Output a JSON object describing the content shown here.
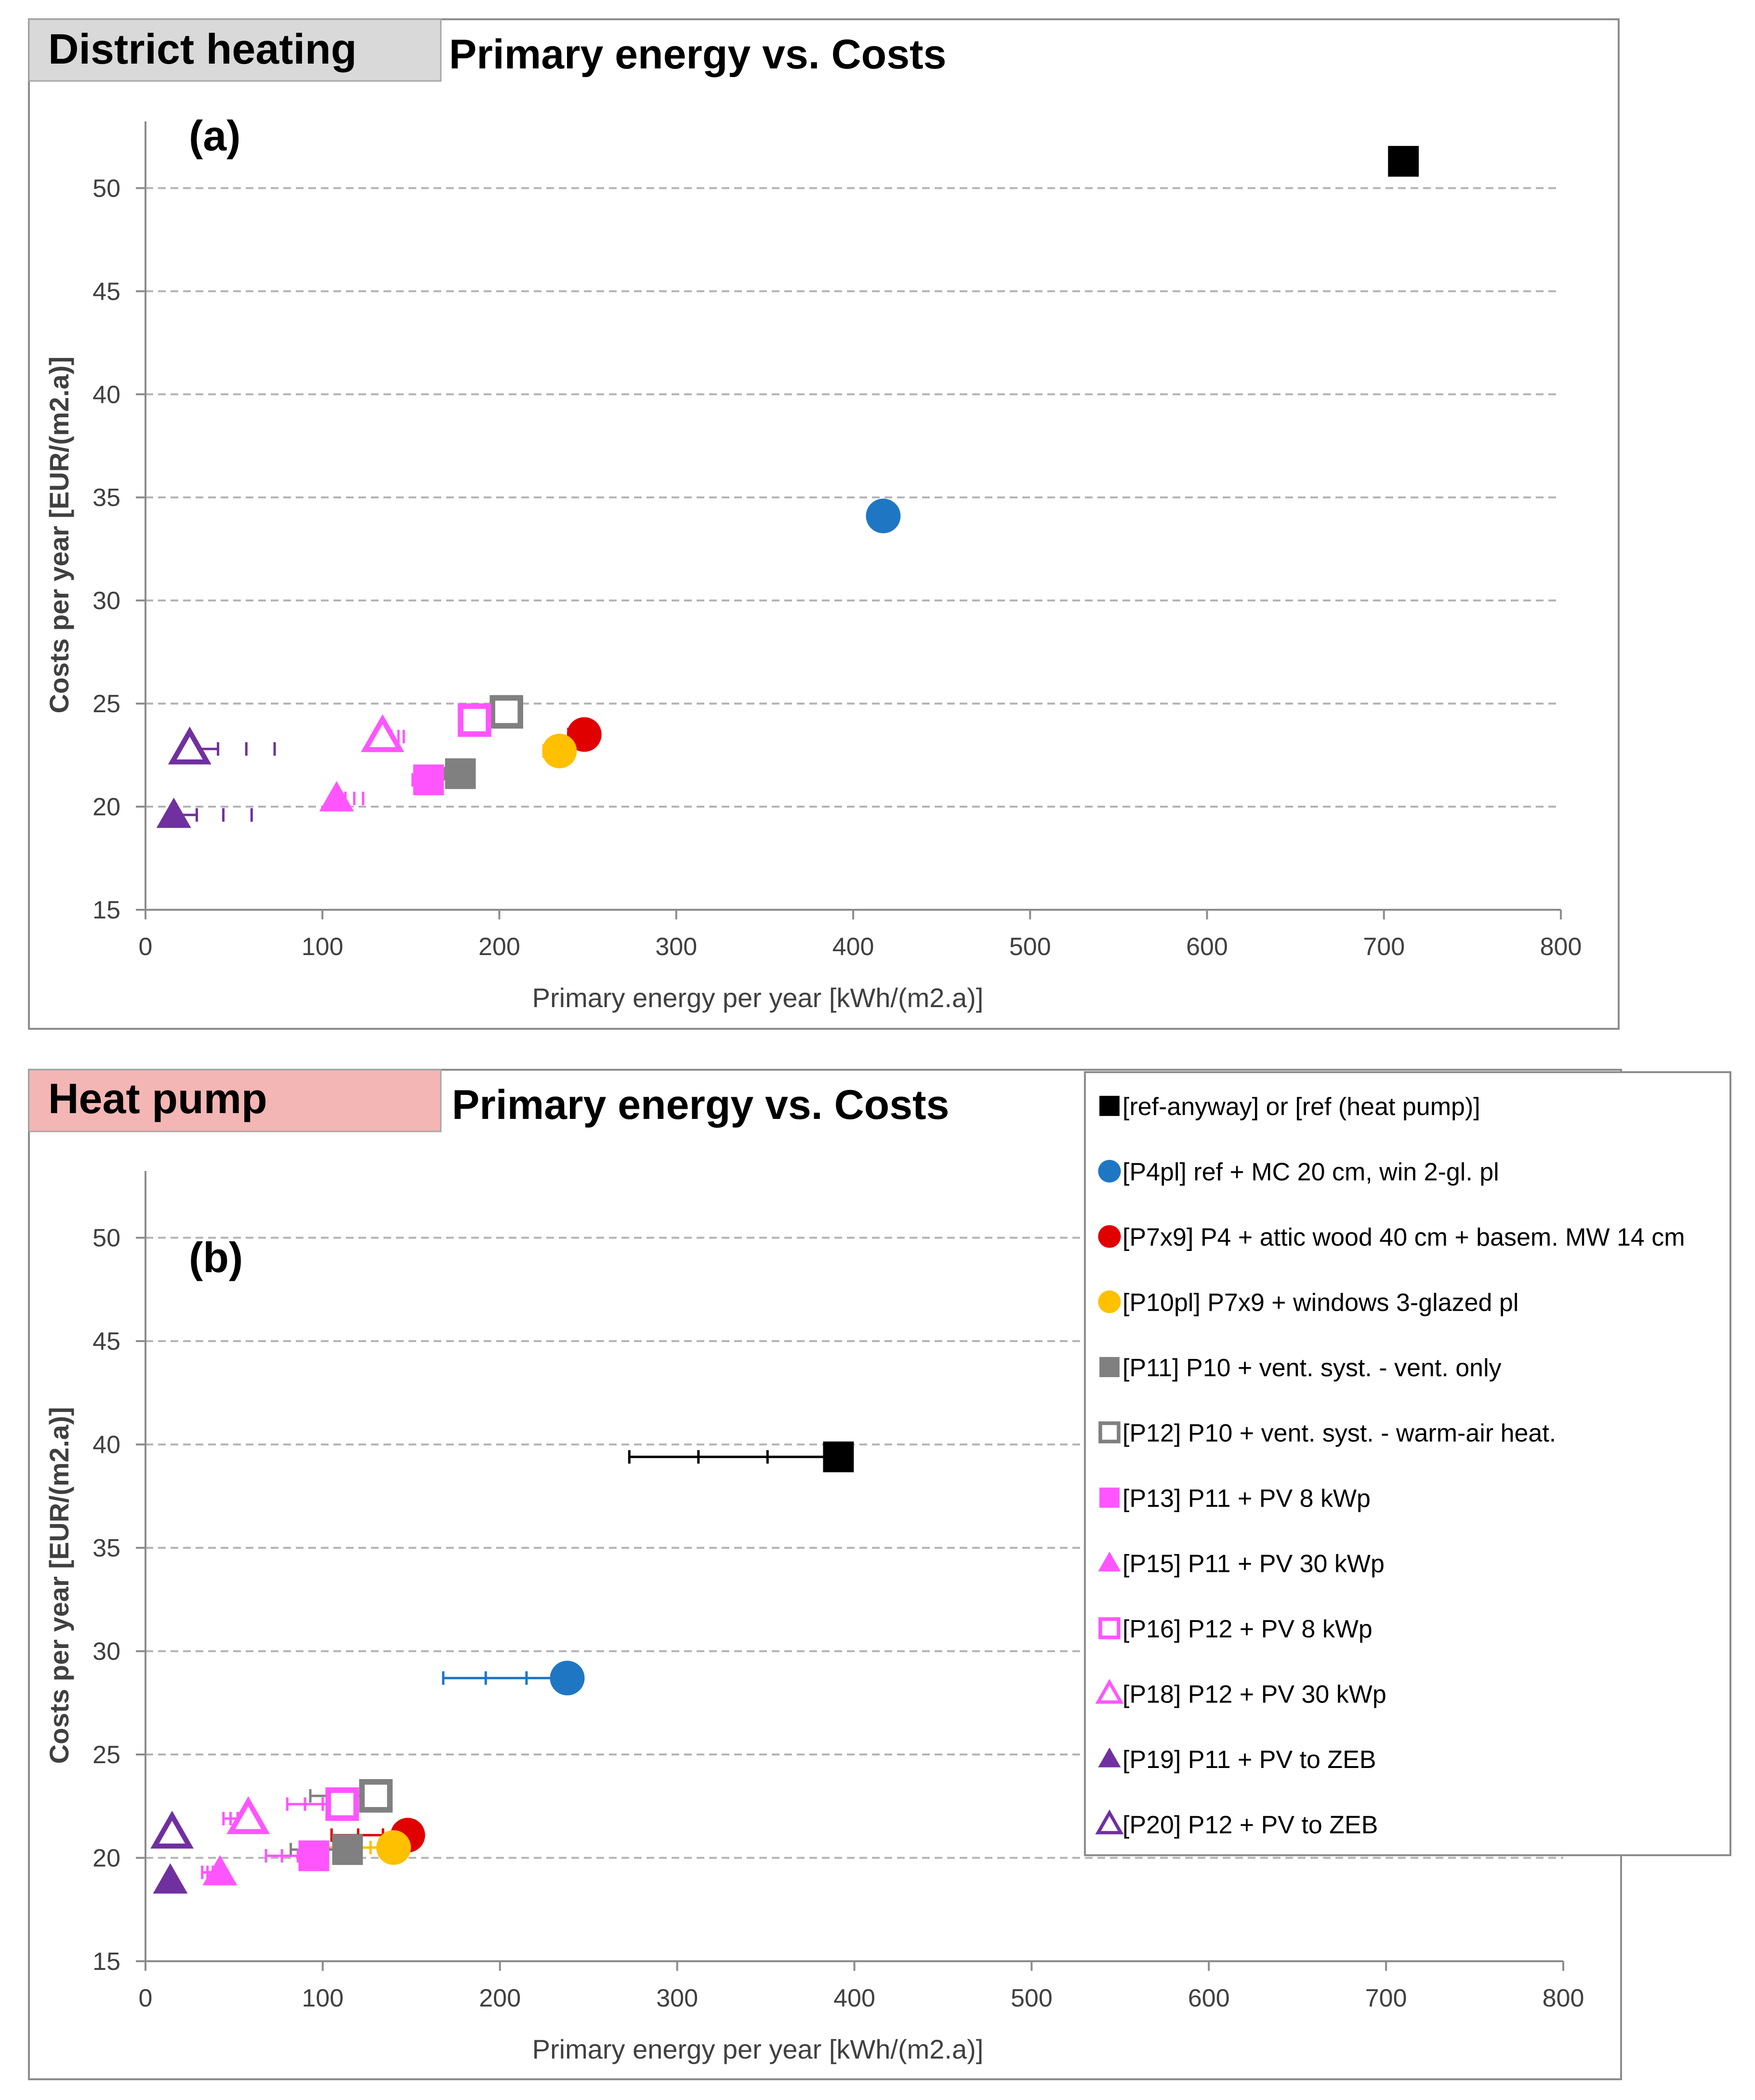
{
  "panels": [
    {
      "tag": "District heating",
      "tag_color": "#d9d9d9",
      "title": "Primary energy vs. Costs",
      "label": "(a)"
    },
    {
      "tag": "Heat pump",
      "tag_color": "#f4b6b4",
      "title": "Primary energy vs. Costs",
      "label": "(b)"
    }
  ],
  "legend": [
    {
      "key": "ref",
      "label": "[ref-anyway] or [ref (heat pump)]",
      "marker": "square-filled",
      "color": "#000000"
    },
    {
      "key": "p4pl",
      "label": "[P4pl] ref + MC 20 cm, win 2-gl. pl",
      "marker": "circle",
      "color": "#1f77c4"
    },
    {
      "key": "p7x9",
      "label": "[P7x9] P4 + attic wood 40 cm + basem. MW 14 cm",
      "marker": "circle",
      "color": "#e00000"
    },
    {
      "key": "p10pl",
      "label": "[P10pl] P7x9 + windows 3-glazed  pl",
      "marker": "circle",
      "color": "#ffc000"
    },
    {
      "key": "p11",
      "label": "[P11] P10 + vent. syst. - vent. only",
      "marker": "square-filled",
      "color": "#808080"
    },
    {
      "key": "p12",
      "label": "[P12] P10 + vent. syst. - warm-air heat.",
      "marker": "square-open",
      "color": "#808080"
    },
    {
      "key": "p13",
      "label": "[P13] P11 + PV  8 kWp",
      "marker": "square-filled",
      "color": "#ff55ff"
    },
    {
      "key": "p15",
      "label": "[P15] P11 + PV  30 kWp",
      "marker": "triangle-filled",
      "color": "#ff55ff"
    },
    {
      "key": "p16",
      "label": "[P16] P12 + PV  8 kWp",
      "marker": "square-open",
      "color": "#ff55ff"
    },
    {
      "key": "p18",
      "label": "[P18] P12 + PV  30 kWp",
      "marker": "triangle-open",
      "color": "#ff55ff"
    },
    {
      "key": "p19",
      "label": "[P19] P11 + PV to ZEB",
      "marker": "triangle-filled",
      "color": "#7030a0"
    },
    {
      "key": "p20",
      "label": "[P20] P12 + PV to ZEB",
      "marker": "triangle-open",
      "color": "#7030a0"
    }
  ],
  "chart_data": [
    {
      "type": "scatter",
      "title": "Primary energy vs. Costs",
      "subtitle": "District heating",
      "xlabel": "Primary energy per year  [kWh/(m2.a)]",
      "ylabel": "Costs per year [EUR/(m2.a)]",
      "xlim": [
        0,
        800
      ],
      "ylim": [
        15,
        53
      ],
      "xticks": [
        0,
        100,
        200,
        300,
        400,
        500,
        600,
        700,
        800
      ],
      "yticks": [
        15,
        20,
        25,
        30,
        35,
        40,
        45,
        50
      ],
      "grid": "horizontal dashed",
      "series": [
        {
          "key": "ref",
          "x": 711,
          "y": 51.3,
          "ticks": [
            705,
            708
          ]
        },
        {
          "key": "p4pl",
          "x": 417,
          "y": 34.1,
          "ticks": [
            409,
            413
          ]
        },
        {
          "key": "p7x9",
          "x": 248,
          "y": 23.5,
          "ticks": [
            239,
            243
          ]
        },
        {
          "key": "p10pl",
          "x": 234,
          "y": 22.7,
          "ticks": [
            225,
            229
          ]
        },
        {
          "key": "p11",
          "x": 178,
          "y": 21.6,
          "ticks": [
            169,
            173
          ]
        },
        {
          "key": "p12",
          "x": 204,
          "y": 24.6,
          "ticks": [
            196,
            200
          ]
        },
        {
          "key": "p13",
          "x": 160,
          "y": 21.3,
          "ticks": [
            151,
            156
          ]
        },
        {
          "key": "p15",
          "x": 108,
          "y": 20.4,
          "ticks": [
            113,
            118,
            123
          ]
        },
        {
          "key": "p16",
          "x": 186,
          "y": 24.2,
          "ticks": [
            190,
            194
          ]
        },
        {
          "key": "p18",
          "x": 134,
          "y": 23.4,
          "ticks": [
            139,
            143,
            146
          ]
        },
        {
          "key": "p19",
          "x": 16,
          "y": 19.6,
          "ticks": [
            29,
            44,
            60
          ]
        },
        {
          "key": "p20",
          "x": 25,
          "y": 22.8,
          "ticks": [
            41,
            57,
            73
          ]
        }
      ]
    },
    {
      "type": "scatter",
      "title": "Primary energy vs. Costs",
      "subtitle": "Heat pump",
      "xlabel": "Primary energy per year  [kWh/(m2.a)]",
      "ylabel": "Costs per year [EUR/(m2.a)]",
      "xlim": [
        0,
        800
      ],
      "ylim": [
        15,
        53
      ],
      "xticks": [
        0,
        100,
        200,
        300,
        400,
        500,
        600,
        700,
        800
      ],
      "yticks": [
        15,
        20,
        25,
        30,
        35,
        40,
        45,
        50
      ],
      "grid": "horizontal dashed",
      "series": [
        {
          "key": "ref",
          "x": 391,
          "y": 39.4,
          "ticks": [
            273,
            312,
            351
          ]
        },
        {
          "key": "p4pl",
          "x": 238,
          "y": 28.7,
          "ticks": [
            168,
            192,
            215
          ]
        },
        {
          "key": "p7x9",
          "x": 148,
          "y": 21.1,
          "ticks": [
            105,
            120,
            134
          ]
        },
        {
          "key": "p10pl",
          "x": 140,
          "y": 20.5,
          "ticks": [
            100,
            114,
            127
          ]
        },
        {
          "key": "p11",
          "x": 114,
          "y": 20.4,
          "ticks": [
            82,
            92,
            103
          ]
        },
        {
          "key": "p12",
          "x": 130,
          "y": 23.0,
          "ticks": [
            93,
            105,
            118
          ]
        },
        {
          "key": "p13",
          "x": 95,
          "y": 20.1,
          "ticks": [
            68,
            77,
            86
          ]
        },
        {
          "key": "p15",
          "x": 42,
          "y": 19.3,
          "ticks": [
            32,
            35,
            38
          ]
        },
        {
          "key": "p16",
          "x": 111,
          "y": 22.6,
          "ticks": [
            80,
            90,
            100
          ]
        },
        {
          "key": "p18",
          "x": 58,
          "y": 21.9,
          "ticks": [
            44,
            48,
            52
          ]
        },
        {
          "key": "p19",
          "x": 14,
          "y": 18.9,
          "ticks": []
        },
        {
          "key": "p20",
          "x": 15,
          "y": 21.2,
          "ticks": []
        }
      ]
    }
  ]
}
